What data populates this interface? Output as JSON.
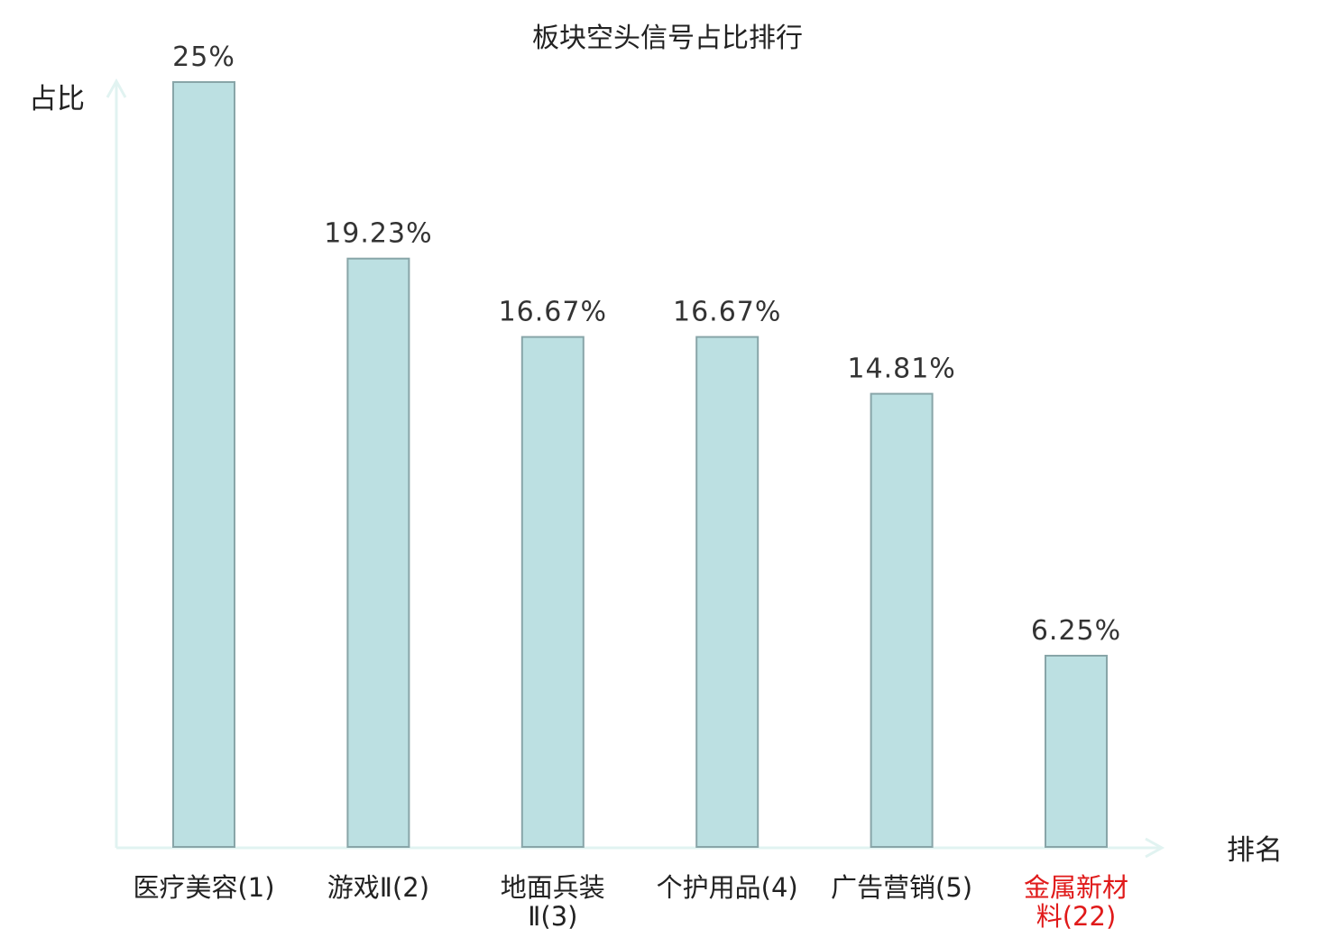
{
  "chart_data": {
    "type": "bar",
    "title": "板块空头信号占比排行",
    "ylabel": "占比",
    "xlabel": "排名",
    "ylim": [
      0,
      25
    ],
    "grid": false,
    "categories": [
      {
        "lines": [
          "医疗美容(1)"
        ],
        "highlight": false
      },
      {
        "lines": [
          "游戏Ⅱ(2)"
        ],
        "highlight": false
      },
      {
        "lines": [
          "地面兵装",
          "Ⅱ(3)"
        ],
        "highlight": false
      },
      {
        "lines": [
          "个护用品(4)"
        ],
        "highlight": false
      },
      {
        "lines": [
          "广告营销(5)"
        ],
        "highlight": false
      },
      {
        "lines": [
          "金属新材",
          "料(22)"
        ],
        "highlight": true
      }
    ],
    "values": [
      25,
      19.23,
      16.67,
      16.67,
      14.81,
      6.25
    ],
    "value_labels": [
      "25%",
      "19.23%",
      "16.67%",
      "16.67%",
      "14.81%",
      "6.25%"
    ]
  },
  "colors": {
    "bar_fill": "#bce0e2",
    "bar_stroke": "#88a5a8",
    "axis": "#e1f3f1",
    "label_default": "#222222",
    "label_highlight": "#e01a1a"
  }
}
